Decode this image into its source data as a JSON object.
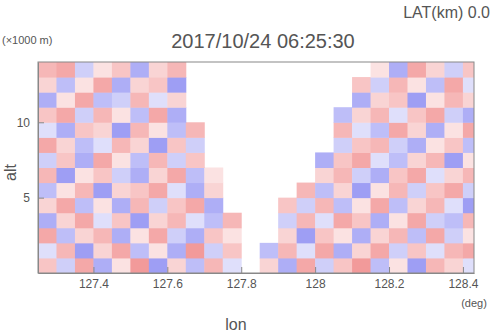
{
  "chart_data": {
    "type": "heatmap",
    "title": "2017/10/24 06:25:30",
    "subtitle": "LAT(km) 0.0",
    "x_label": "lon",
    "y_label": "alt",
    "annotations": [
      "(×1000 m)",
      "(deg)"
    ],
    "xlim": [
      127.25,
      128.43
    ],
    "xticks": [
      127.4,
      127.6,
      127.8,
      128.0,
      128.2,
      128.4
    ],
    "ylim": [
      0,
      14
    ],
    "yticks": [
      5,
      10
    ],
    "x": [
      127.275,
      127.325,
      127.375,
      127.425,
      127.475,
      127.525,
      127.575,
      127.625,
      127.675,
      127.725,
      127.775,
      127.825,
      127.875,
      127.925,
      127.975,
      128.025,
      128.075,
      128.125,
      128.175,
      128.225,
      128.275,
      128.325,
      128.375,
      128.425
    ],
    "y": [
      0.5,
      1.5,
      2.5,
      3.5,
      4.5,
      5.5,
      6.5,
      7.5,
      8.5,
      9.5,
      10.5,
      11.5,
      12.5,
      13.5
    ],
    "values": [
      [
        0.4,
        -0.3,
        0.6,
        -0.5,
        0.2,
        0.7,
        -0.6,
        0.3,
        -0.4,
        0.5,
        -0.2,
        null,
        0.3,
        -0.5,
        0.6,
        -0.3,
        0.4,
        0.7,
        -0.4,
        0.2,
        -0.6,
        0.5,
        0.3,
        -0.2
      ],
      [
        -0.2,
        0.5,
        -0.6,
        0.3,
        0.6,
        -0.4,
        0.2,
        -0.5,
        0.7,
        -0.3,
        0.4,
        null,
        -0.4,
        0.5,
        -0.2,
        0.6,
        -0.5,
        0.3,
        0.6,
        -0.3,
        0.4,
        -0.2,
        0.5,
        0.6
      ],
      [
        0.6,
        -0.4,
        0.3,
        0.5,
        -0.5,
        0.2,
        0.6,
        -0.3,
        -0.5,
        0.4,
        0.2,
        null,
        null,
        0.3,
        -0.6,
        0.4,
        0.2,
        -0.5,
        0.3,
        0.5,
        -0.4,
        0.6,
        -0.3,
        0.2
      ],
      [
        -0.5,
        0.3,
        0.6,
        -0.2,
        0.4,
        -0.6,
        0.3,
        0.5,
        -0.2,
        -0.4,
        0.5,
        null,
        null,
        -0.3,
        0.5,
        -0.2,
        0.6,
        0.4,
        -0.5,
        0.2,
        0.6,
        -0.3,
        -0.4,
        0.5
      ],
      [
        0.3,
        0.6,
        -0.4,
        0.2,
        -0.5,
        0.5,
        -0.3,
        0.4,
        0.6,
        -0.5,
        null,
        null,
        null,
        0.4,
        -0.3,
        0.5,
        -0.4,
        0.2,
        0.6,
        -0.4,
        0.3,
        0.5,
        -0.2,
        -0.6
      ],
      [
        -0.4,
        0.2,
        0.5,
        -0.6,
        0.3,
        0.4,
        0.6,
        -0.2,
        -0.5,
        0.3,
        null,
        null,
        null,
        null,
        0.5,
        -0.4,
        0.3,
        -0.6,
        0.2,
        0.5,
        -0.3,
        0.4,
        0.6,
        -0.3
      ],
      [
        0.5,
        -0.6,
        0.2,
        0.4,
        -0.3,
        -0.5,
        0.3,
        0.6,
        -0.4,
        0.2,
        null,
        null,
        null,
        null,
        null,
        0.3,
        0.5,
        -0.3,
        -0.5,
        0.4,
        0.6,
        -0.2,
        0.3,
        0.5
      ],
      [
        -0.3,
        0.4,
        -0.5,
        0.6,
        0.2,
        -0.4,
        0.5,
        -0.3,
        0.4,
        null,
        null,
        null,
        null,
        null,
        null,
        -0.5,
        0.4,
        0.6,
        -0.2,
        -0.4,
        0.3,
        0.5,
        -0.6,
        0.2
      ],
      [
        0.6,
        0.3,
        -0.4,
        -0.2,
        0.5,
        0.3,
        -0.6,
        0.4,
        -0.3,
        null,
        null,
        null,
        null,
        null,
        null,
        null,
        -0.3,
        0.4,
        0.5,
        -0.3,
        -0.5,
        0.2,
        0.4,
        -0.4
      ],
      [
        -0.2,
        -0.5,
        0.4,
        0.3,
        -0.6,
        0.5,
        0.2,
        -0.4,
        0.5,
        null,
        null,
        null,
        null,
        null,
        null,
        null,
        0.5,
        -0.2,
        -0.4,
        0.6,
        0.3,
        -0.5,
        0.2,
        0.6
      ],
      [
        0.4,
        0.6,
        -0.3,
        0.5,
        0.2,
        -0.4,
        0.6,
        -0.5,
        null,
        null,
        null,
        null,
        null,
        null,
        null,
        null,
        -0.4,
        0.3,
        0.5,
        -0.2,
        0.4,
        0.6,
        -0.3,
        -0.5
      ],
      [
        -0.5,
        0.2,
        0.6,
        -0.4,
        -0.3,
        0.5,
        -0.2,
        0.3,
        null,
        null,
        null,
        null,
        null,
        null,
        null,
        null,
        null,
        -0.5,
        0.3,
        0.4,
        -0.6,
        0.2,
        0.5,
        0.3
      ],
      [
        0.3,
        -0.4,
        0.2,
        0.6,
        -0.5,
        0.3,
        0.4,
        -0.6,
        null,
        null,
        null,
        null,
        null,
        null,
        null,
        null,
        null,
        0.4,
        -0.3,
        0.5,
        0.2,
        -0.4,
        0.6,
        -0.2
      ],
      [
        0.5,
        0.6,
        -0.3,
        0.2,
        0.4,
        -0.5,
        0.3,
        0.5,
        null,
        null,
        null,
        null,
        null,
        null,
        null,
        null,
        null,
        null,
        0.2,
        -0.5,
        0.6,
        0.3,
        -0.3,
        0.4
      ]
    ]
  }
}
